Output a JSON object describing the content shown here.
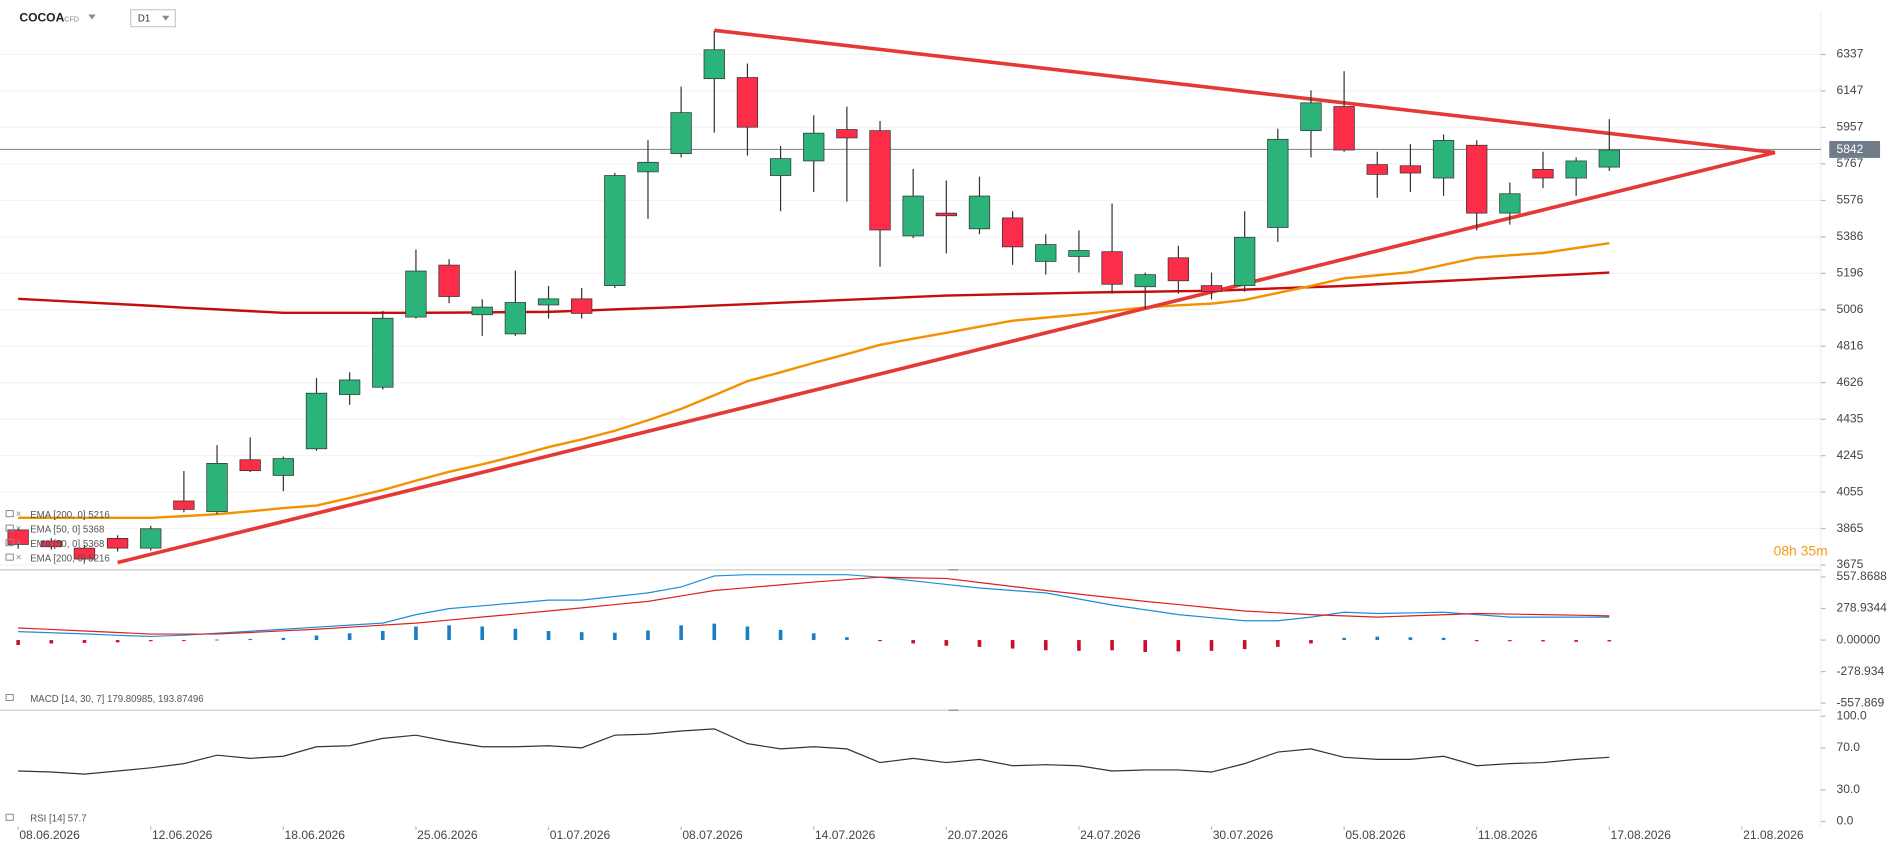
{
  "header": {
    "symbol": "COCOA",
    "instrument": "CFD",
    "timeframe": "D1"
  },
  "chart_data": [
    {
      "type": "candlestick",
      "categories": [
        "08.06.2026",
        null,
        null,
        null,
        "12.06.2026",
        null,
        null,
        null,
        "18.06.2026",
        null,
        null,
        null,
        "25.06.2026",
        null,
        null,
        null,
        "01.07.2026",
        null,
        null,
        null,
        "08.07.2026",
        null,
        null,
        null,
        "14.07.2026",
        null,
        null,
        null,
        "20.07.2026",
        null,
        null,
        null,
        "24.07.2026",
        null,
        null,
        null,
        "30.07.2026",
        null,
        null,
        null,
        "05.08.2026",
        null,
        null,
        null,
        "11.08.2026",
        null,
        null,
        null,
        "17.08.2026",
        null,
        null,
        null,
        "21.08.2026",
        null,
        null
      ],
      "open": [
        3858,
        3800,
        3763,
        3814,
        3763,
        4009,
        3953,
        4224,
        4142,
        4281,
        4564,
        4602,
        4968,
        5239,
        4980,
        4880,
        5031,
        5063,
        5132,
        5725,
        5820,
        6211,
        6217,
        5706,
        5782,
        5946,
        5940,
        5391,
        5510,
        5428,
        5485,
        5258,
        5284,
        5309,
        5126,
        5277,
        5132,
        5132,
        5435,
        5940,
        6066,
        5763,
        5757,
        5693,
        5864,
        5510,
        5738,
        5693,
        5750,
        null,
        null,
        null,
        null,
        null,
        null
      ],
      "high": [
        3870,
        3815,
        3780,
        3830,
        3880,
        4165,
        4300,
        4340,
        4240,
        4650,
        4680,
        5000,
        5320,
        5270,
        5060,
        5210,
        5130,
        5120,
        5720,
        5890,
        6170,
        6460,
        6290,
        5860,
        6020,
        6065,
        5990,
        5740,
        5680,
        5700,
        5520,
        5400,
        5420,
        5560,
        5200,
        5340,
        5200,
        5520,
        5950,
        6150,
        6250,
        5830,
        5870,
        5920,
        5890,
        5670,
        5830,
        5800,
        6000,
        null,
        null,
        null,
        null,
        null,
        null
      ],
      "low": [
        3760,
        3755,
        3690,
        3745,
        3750,
        3950,
        3940,
        4160,
        4060,
        4270,
        4510,
        4590,
        4960,
        5040,
        4870,
        4870,
        4960,
        4960,
        5120,
        5480,
        5800,
        5930,
        5810,
        5520,
        5620,
        5570,
        5230,
        5380,
        5300,
        5400,
        5240,
        5190,
        5200,
        5090,
        5010,
        5090,
        5060,
        5100,
        5360,
        5800,
        5830,
        5590,
        5620,
        5600,
        5420,
        5450,
        5640,
        5600,
        5730,
        null,
        null,
        null,
        null,
        null,
        null
      ],
      "close": [
        3782,
        3770,
        3706,
        3763,
        3864,
        3965,
        4205,
        4167,
        4230,
        4571,
        4640,
        4962,
        5208,
        5075,
        5020,
        5044,
        5063,
        4987,
        5706,
        5775,
        6034,
        6362,
        5958,
        5794,
        5927,
        5902,
        5422,
        5599,
        5496,
        5599,
        5334,
        5346,
        5315,
        5139,
        5189,
        5157,
        5101,
        5384,
        5895,
        6085,
        5839,
        5712,
        5719,
        5889,
        5510,
        5611,
        5693,
        5782,
        5839,
        null,
        null,
        null,
        null,
        null,
        null
      ],
      "up_color": "#2bb37a",
      "down_color": "#fb2d48",
      "series": [
        {
          "name": "EMA [200, 0] 5216",
          "color": "#c40d0d",
          "values": [
            5063,
            5054,
            5045,
            5036,
            5027,
            5017,
            5008,
            4999,
            4990,
            4990,
            4990,
            4990,
            4990,
            4991,
            4992,
            4994,
            4995,
            5001,
            5008,
            5014,
            5020,
            5028,
            5035,
            5043,
            5050,
            5058,
            5065,
            5073,
            5080,
            5084,
            5088,
            5091,
            5095,
            5098,
            5100,
            5103,
            5105,
            5111,
            5118,
            5124,
            5130,
            5139,
            5148,
            5156,
            5165,
            5174,
            5183,
            5191,
            5200,
            null,
            null,
            null,
            null,
            null,
            null
          ]
        },
        {
          "name": "EMA [50, 0] 5368",
          "color": "#f39200",
          "values": [
            3921,
            3921,
            3921,
            3921,
            3921,
            3930,
            3940,
            3955,
            3972,
            3985,
            4025,
            4066,
            4115,
            4161,
            4200,
            4243,
            4290,
            4330,
            4375,
            4430,
            4489,
            4560,
            4634,
            4680,
            4729,
            4775,
            4823,
            4855,
            4886,
            4918,
            4949,
            4965,
            4981,
            5000,
            5019,
            5029,
            5038,
            5057,
            5094,
            5130,
            5170,
            5186,
            5202,
            5240,
            5277,
            5290,
            5302,
            5328,
            5353,
            null,
            null,
            null,
            null,
            null,
            null
          ]
        }
      ],
      "legend_echo": [
        "EMA [50, 0] 5368",
        "EMA [200, 0] 5216"
      ],
      "trendlines": [
        {
          "color": "#e53935",
          "x": [
            21,
            53
          ],
          "y": [
            6463,
            5826
          ]
        },
        {
          "color": "#e53935",
          "x": [
            3,
            53
          ],
          "y": [
            3688,
            5826
          ]
        }
      ],
      "last_price": 5842,
      "annotation": "08h 35m",
      "ylim": [
        3656,
        6558
      ],
      "yticks": [
        6337,
        6147,
        5957,
        5767,
        5576,
        5386,
        5196,
        5006,
        4816,
        4626,
        4435,
        4245,
        4055,
        3865,
        3675
      ],
      "grid": true
    },
    {
      "type": "macd",
      "title": "MACD [14, 30, 7] 179.80985, 193.87496",
      "series": [
        {
          "color": "#1f8dd6",
          "values": [
            75,
            65,
            55,
            42,
            32,
            43,
            60,
            78,
            96,
            114,
            132,
            150,
            225,
            278,
            303,
            328,
            353,
            353,
            385,
            417,
            470,
            567,
            578,
            578,
            578,
            578,
            556,
            524,
            492,
            460,
            438,
            417,
            363,
            310,
            268,
            225,
            198,
            171,
            171,
            203,
            246,
            235,
            240,
            246,
            225,
            203,
            203,
            203,
            203,
            null,
            null,
            null,
            null,
            null,
            null
          ]
        },
        {
          "color": "#e0201b",
          "values": [
            107,
            94,
            80,
            67,
            53,
            53,
            53,
            67,
            82,
            96,
            114,
            132,
            150,
            177,
            204,
            230,
            257,
            285,
            314,
            342,
            390,
            438,
            463,
            488,
            513,
            535,
            556,
            550,
            545,
            509,
            474,
            438,
            406,
            374,
            342,
            314,
            285,
            257,
            241,
            225,
            214,
            203,
            214,
            224,
            235,
            230,
            225,
            220,
            214,
            null,
            null,
            null,
            null,
            null,
            null
          ]
        }
      ],
      "histogram": {
        "positive_color": "#1a7fc1",
        "negative_color": "#c8102e",
        "values": [
          -43,
          -30,
          -25,
          -20,
          -10,
          -5,
          5,
          10,
          20,
          40,
          60,
          80,
          120,
          130,
          120,
          100,
          80,
          70,
          65,
          85,
          130,
          145,
          120,
          90,
          60,
          25,
          -10,
          -30,
          -50,
          -60,
          -75,
          -90,
          -95,
          -90,
          -105,
          -100,
          -95,
          -80,
          -60,
          -30,
          20,
          30,
          25,
          20,
          -10,
          -10,
          -12,
          -15,
          -12,
          null,
          null,
          null,
          null,
          null,
          null
        ]
      },
      "ylim": [
        -620,
        610
      ],
      "yticks": [
        557.8688,
        278.9344,
        {
          "value": 0,
          "label": "0.00000"
        },
        -278.934,
        -557.869
      ],
      "grid": false
    },
    {
      "type": "line",
      "title": "RSI [14] 57.7",
      "series": [
        {
          "color": "#333333",
          "values": [
            48,
            47,
            45,
            48,
            51,
            55,
            63,
            60,
            62,
            71,
            72,
            79,
            82,
            76,
            71,
            71,
            72,
            70,
            82,
            83,
            86,
            88,
            74,
            69,
            71,
            69,
            56,
            60,
            56,
            59,
            53,
            54,
            53,
            48,
            49,
            49,
            47,
            55,
            66,
            69,
            61,
            59,
            59,
            62,
            53,
            55,
            56,
            59,
            61,
            null,
            null,
            null,
            null,
            null,
            null
          ]
        }
      ],
      "ylim": [
        -4.6,
        104.6
      ],
      "yticks": [
        {
          "value": 100,
          "label": "100.0"
        },
        {
          "value": 70,
          "label": "70.0"
        },
        {
          "value": 30,
          "label": "30.0"
        },
        {
          "value": 0,
          "label": "0.0"
        }
      ],
      "grid": false
    }
  ]
}
